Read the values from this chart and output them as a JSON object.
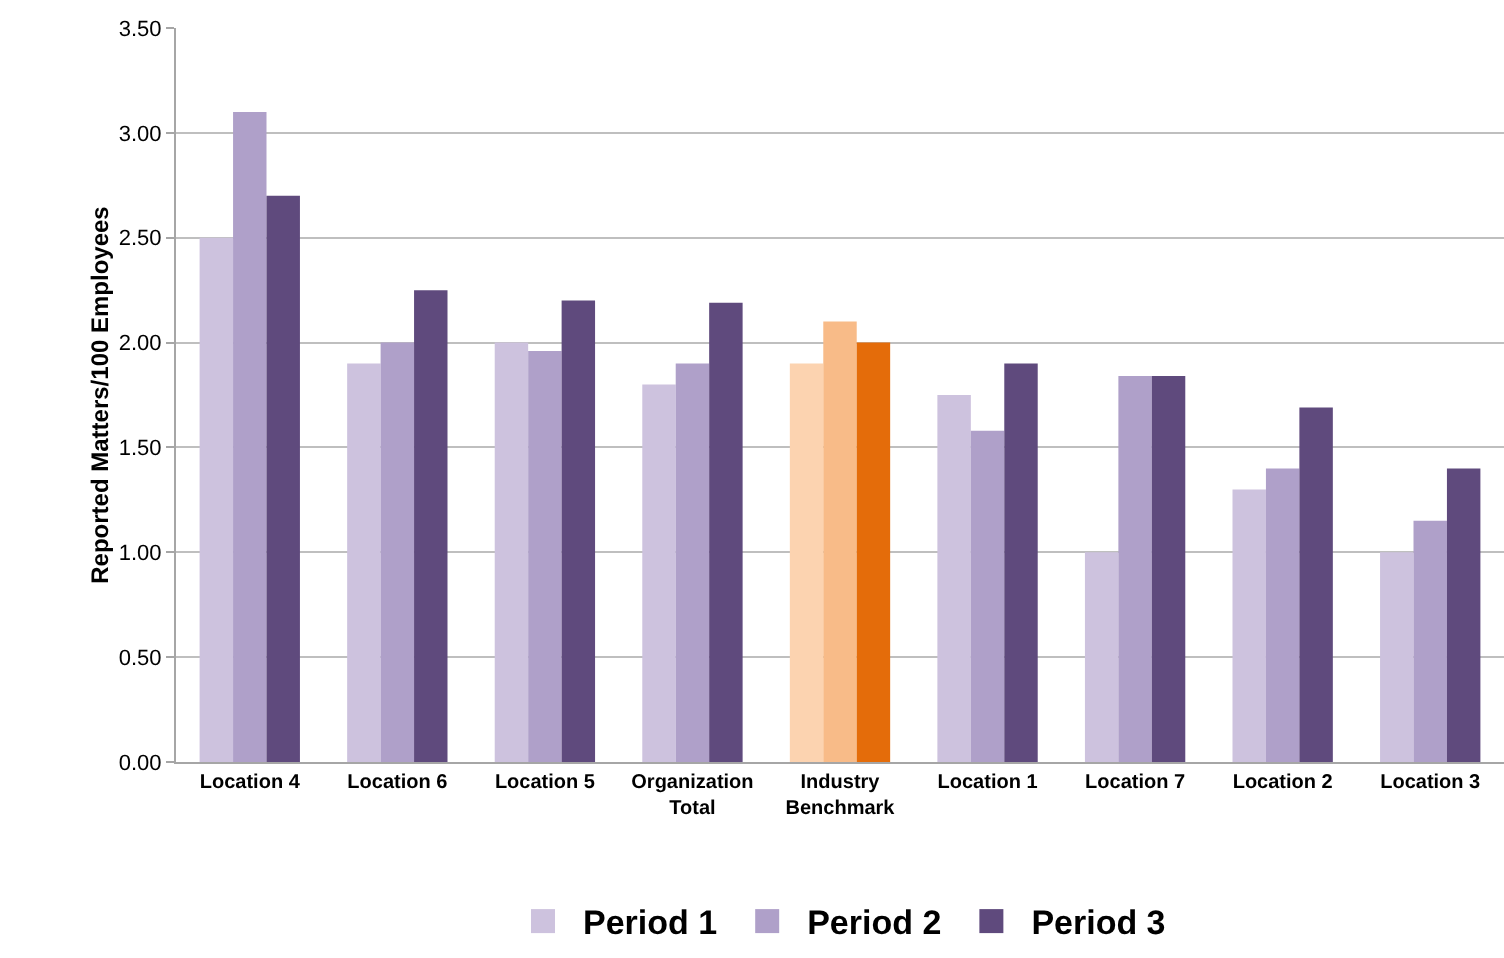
{
  "chart_data": {
    "type": "bar",
    "ylabel": "Reported Matters/100 Employees",
    "categories": [
      "Location 4",
      "Location 6",
      "Location 5",
      "Organization Total",
      "Industry Benchmark",
      "Location 1",
      "Location 7",
      "Location 2",
      "Location 3"
    ],
    "series": [
      {
        "name": "Period 1",
        "color": "#cdc2de",
        "colors": [
          "#cdc2de",
          "#cdc2de",
          "#cdc2de",
          "#cdc2de",
          "#fcd3b0",
          "#cdc2de",
          "#cdc2de",
          "#cdc2de",
          "#cdc2de"
        ],
        "values": [
          2.5,
          1.9,
          2.0,
          1.8,
          1.9,
          1.75,
          1.0,
          1.3,
          1.0
        ]
      },
      {
        "name": "Period 2",
        "color": "#afa0c9",
        "colors": [
          "#afa0c9",
          "#afa0c9",
          "#afa0c9",
          "#afa0c9",
          "#f8bb88",
          "#afa0c9",
          "#afa0c9",
          "#afa0c9",
          "#afa0c9"
        ],
        "values": [
          3.1,
          2.0,
          1.96,
          1.9,
          2.1,
          1.58,
          1.84,
          1.4,
          1.15
        ]
      },
      {
        "name": "Period 3",
        "color": "#5f4a7d",
        "colors": [
          "#5f4a7d",
          "#5f4a7d",
          "#5f4a7d",
          "#5f4a7d",
          "#e46c0a",
          "#5f4a7d",
          "#5f4a7d",
          "#5f4a7d",
          "#5f4a7d"
        ],
        "values": [
          2.7,
          2.25,
          2.2,
          2.19,
          2.0,
          1.9,
          1.84,
          1.69,
          1.4
        ]
      }
    ],
    "ylim": [
      0,
      3.5
    ],
    "yticks": [
      {
        "value": 0,
        "label": "0.00"
      },
      {
        "value": 0.5,
        "label": "0.50"
      },
      {
        "value": 1,
        "label": "1.00"
      },
      {
        "value": 1.5,
        "label": "1.50"
      },
      {
        "value": 2,
        "label": "2.00"
      },
      {
        "value": 2.5,
        "label": "2.50"
      },
      {
        "value": 3,
        "label": "3.00"
      },
      {
        "value": 3.5,
        "label": "3.50"
      }
    ],
    "grid": "y",
    "legend": "bottom"
  }
}
